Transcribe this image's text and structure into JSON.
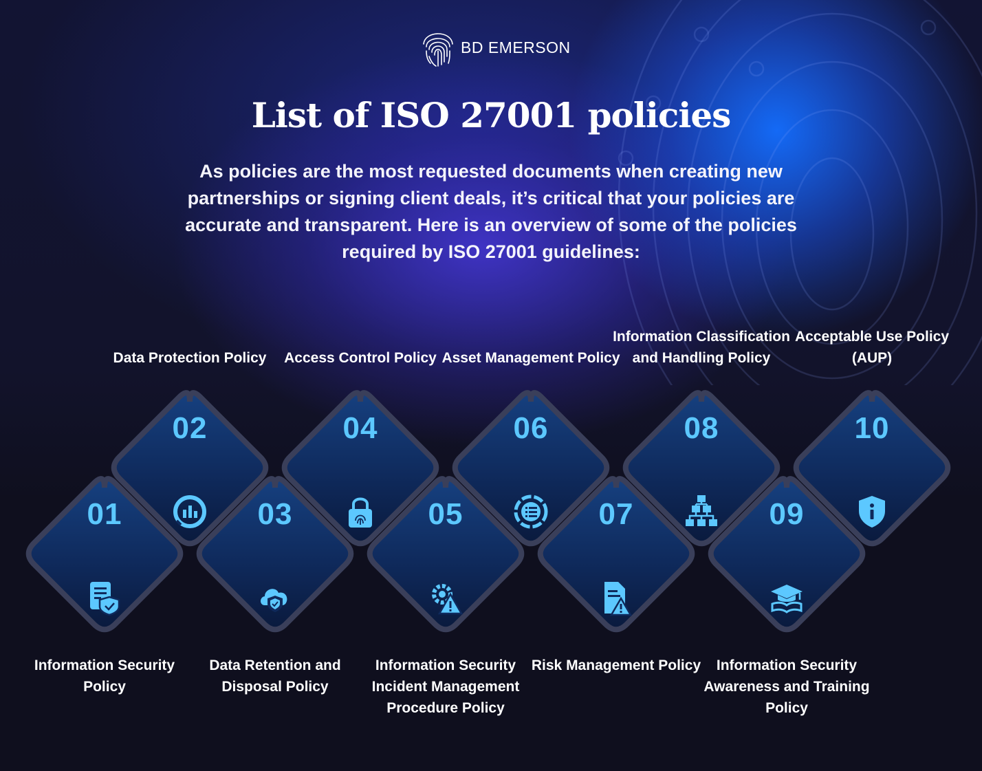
{
  "brand": {
    "name": "BD EMERSON"
  },
  "title": "List of ISO 27001 policies",
  "intro": "As policies are the most requested documents when creating new partnerships or signing client deals, it’s critical that your policies are accurate and transparent. Here is an overview of some of the policies required by ISO 27001 guidelines:",
  "colors": {
    "accent": "#5cc8ff",
    "tile": "#0f2a5c",
    "tile_border": "#3a3f5a",
    "background": "#0f0f1e"
  },
  "policies": [
    {
      "number": "01",
      "label": "Information Security Policy",
      "icon": "document-shield-icon"
    },
    {
      "number": "02",
      "label": "Data Protection Policy",
      "icon": "chart-gauge-icon"
    },
    {
      "number": "03",
      "label": "Data Retention and Disposal Policy",
      "icon": "cloud-shield-icon"
    },
    {
      "number": "04",
      "label": "Access Control Policy",
      "icon": "fingerprint-lock-icon"
    },
    {
      "number": "05",
      "label": "Information Security Incident Management Procedure Policy",
      "icon": "gear-warning-icon"
    },
    {
      "number": "06",
      "label": "Asset Management Policy",
      "icon": "list-circle-icon"
    },
    {
      "number": "07",
      "label": "Risk Management Policy",
      "icon": "document-warning-icon"
    },
    {
      "number": "08",
      "label": "Information Classification and Handling Policy",
      "icon": "hierarchy-icon"
    },
    {
      "number": "09",
      "label": "Information Security Awareness and Training Policy",
      "icon": "graduation-book-icon"
    },
    {
      "number": "10",
      "label": "Acceptable Use Policy (AUP)",
      "icon": "shield-info-icon"
    }
  ]
}
